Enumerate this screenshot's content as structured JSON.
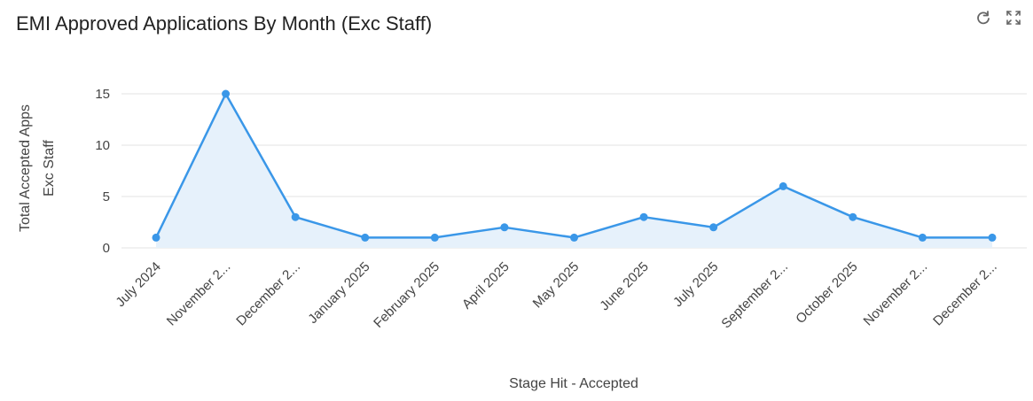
{
  "title": "EMI Approved Applications By Month (Exc Staff)",
  "toolbar": {
    "refresh_icon": "refresh-icon",
    "expand_icon": "expand-icon"
  },
  "colors": {
    "line": "#3a97e8",
    "area": "#e6f1fb",
    "grid": "#e3e3e3",
    "axis_text": "#555555",
    "xlabel_text": "#666666"
  },
  "chart_data": {
    "type": "area",
    "title": "EMI Approved Applications By Month (Exc Staff)",
    "xlabel": "Stage Hit - Accepted",
    "ylabel_lines": [
      "Total Accepted Apps",
      "Exc Staff"
    ],
    "categories": [
      "July 2024",
      "November 2...",
      "December 2...",
      "January 2025",
      "February 2025",
      "April 2025",
      "May 2025",
      "June 2025",
      "July 2025",
      "September 2...",
      "October 2025",
      "November 2...",
      "December 2..."
    ],
    "values": [
      1,
      15,
      3,
      1,
      1,
      2,
      1,
      3,
      2,
      6,
      3,
      1,
      1
    ],
    "ylim": [
      0,
      15
    ],
    "yticks": [
      0,
      5,
      10,
      15
    ],
    "grid": true,
    "legend": "none"
  }
}
